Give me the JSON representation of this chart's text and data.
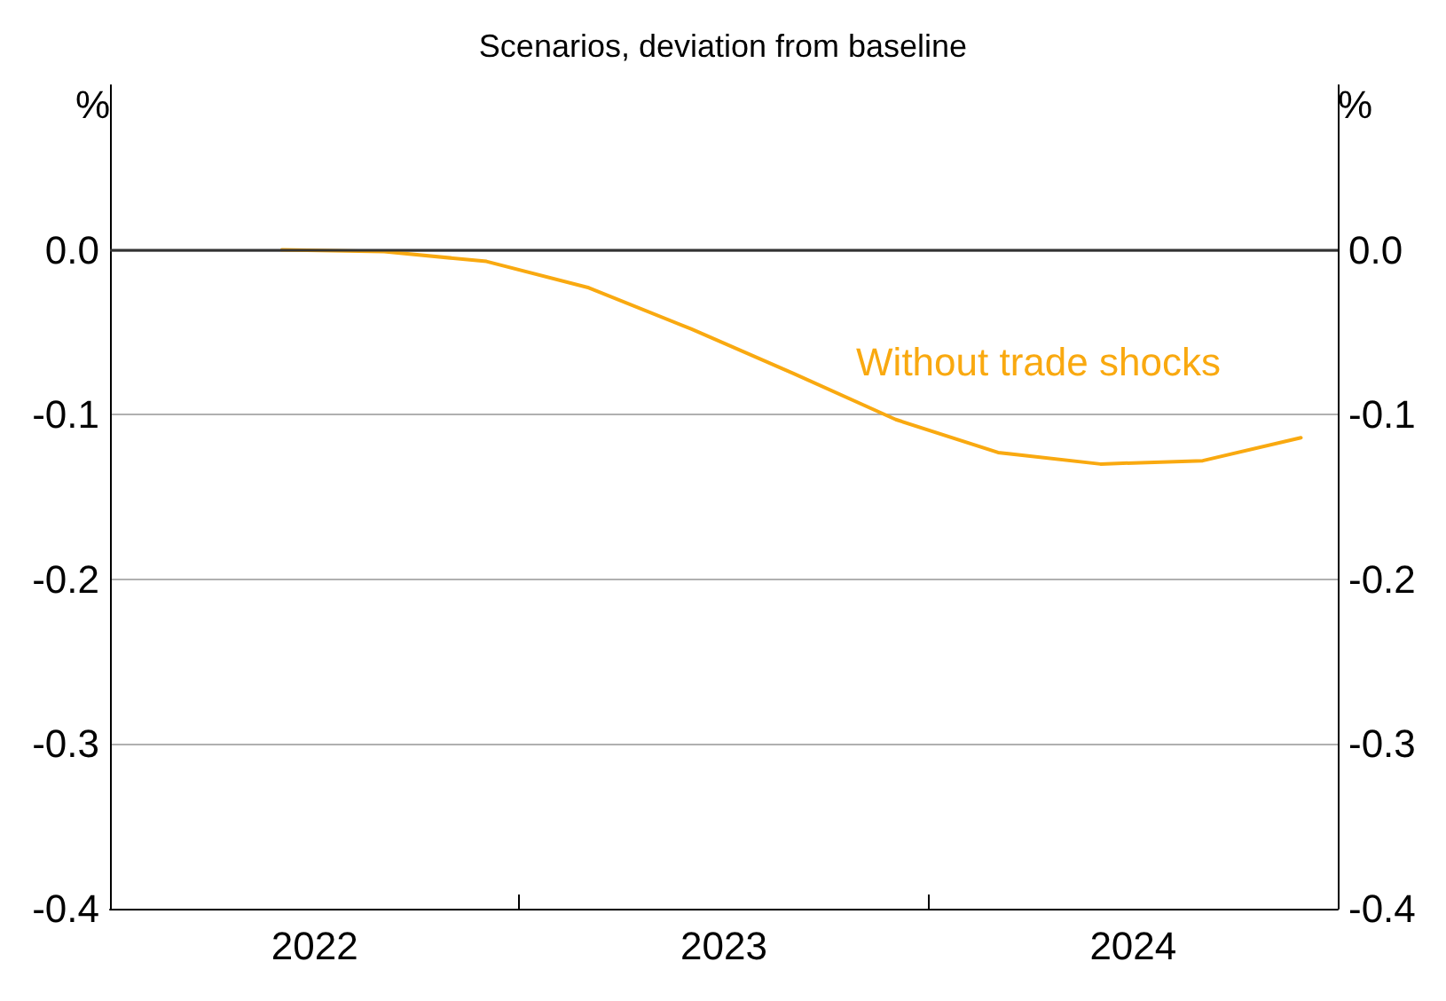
{
  "chart_data": {
    "type": "line",
    "title": "Scenarios, deviation from baseline",
    "x": [
      2022.42,
      2022.67,
      2022.92,
      2023.17,
      2023.42,
      2023.67,
      2023.92,
      2024.17,
      2024.42,
      2024.67,
      2024.91
    ],
    "series": [
      {
        "name": "Without trade shocks",
        "color": "#f9a910",
        "values": [
          0,
          -0.001,
          -0.007,
          -0.023,
          -0.048,
          -0.075,
          -0.103,
          -0.123,
          -0.13,
          -0.128,
          -0.114
        ]
      }
    ],
    "xlim": [
      2022,
      2025
    ],
    "xticks": [
      {
        "value": 2022.5,
        "label": "2022"
      },
      {
        "value": 2023,
        "label": null
      },
      {
        "value": 2023.5,
        "label": "2023"
      },
      {
        "value": 2024,
        "label": null
      },
      {
        "value": 2024.5,
        "label": "2024"
      }
    ],
    "ylim": [
      -0.4,
      0.1
    ],
    "yticks": [
      {
        "value": -0.4,
        "label": "-0.4"
      },
      {
        "value": -0.3,
        "label": "-0.3"
      },
      {
        "value": -0.2,
        "label": "-0.2"
      },
      {
        "value": -0.1,
        "label": "-0.1"
      },
      {
        "value": 0,
        "label": "0.0"
      }
    ],
    "y2lim": [
      -0.4,
      0.1
    ],
    "y2ticks": [
      {
        "value": -0.4,
        "label": "-0.4"
      },
      {
        "value": -0.3,
        "label": "-0.3"
      },
      {
        "value": -0.2,
        "label": "-0.2"
      },
      {
        "value": -0.1,
        "label": "-0.1"
      },
      {
        "value": 0,
        "label": "0.0"
      }
    ],
    "ylabel": "%",
    "y2label": "%",
    "ref_lines": [
      {
        "axis": "y",
        "value": 0,
        "color": "#333333"
      }
    ],
    "grid": "y",
    "legend": false,
    "marker": "none",
    "line_style": "solid"
  }
}
